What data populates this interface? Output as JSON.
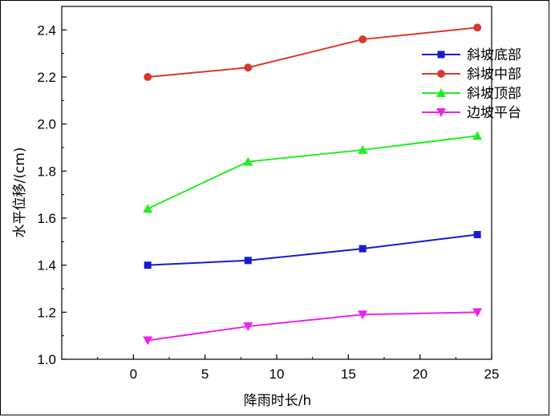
{
  "chart_data": {
    "type": "line",
    "title": "",
    "xlabel": "降雨时长/h",
    "ylabel": "水平位移/(cm)",
    "xlim": [
      -5,
      25
    ],
    "ylim": [
      1.0,
      2.5
    ],
    "xticks": [
      "0",
      "5",
      "10",
      "15",
      "20",
      "25"
    ],
    "yticks": [
      "1.0",
      "1.2",
      "1.4",
      "1.6",
      "1.8",
      "2.0",
      "2.2",
      "2.4"
    ],
    "x": [
      1,
      8,
      16,
      24
    ],
    "grid": false,
    "legend_position": "top-right",
    "series": [
      {
        "name": "斜坡底部",
        "color": "#1a1ad0",
        "marker": "square",
        "values": [
          1.4,
          1.42,
          1.47,
          1.53
        ]
      },
      {
        "name": "斜坡中部",
        "color": "#d63a2f",
        "marker": "circle",
        "values": [
          2.2,
          2.24,
          2.36,
          2.41
        ]
      },
      {
        "name": "斜坡顶部",
        "color": "#22ee22",
        "marker": "triangle-up",
        "values": [
          1.64,
          1.84,
          1.89,
          1.95
        ]
      },
      {
        "name": "边坡平台",
        "color": "#ee22ee",
        "marker": "triangle-down",
        "values": [
          1.08,
          1.14,
          1.19,
          1.2
        ]
      }
    ]
  }
}
